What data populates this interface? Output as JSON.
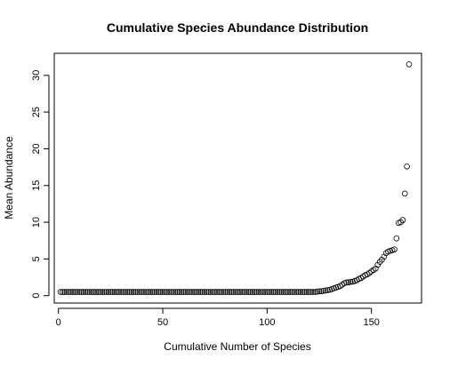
{
  "chart_data": {
    "type": "scatter",
    "title": "Cumulative Species Abundance Distribution",
    "xlabel": "Cumulative Number of Species",
    "ylabel": "Mean Abundance",
    "xlim": [
      -2,
      174
    ],
    "ylim": [
      -1.0,
      33.0
    ],
    "xticks": [
      0,
      50,
      100,
      150
    ],
    "yticks": [
      0,
      5,
      10,
      15,
      20,
      25,
      30
    ],
    "grid": false,
    "legend": "none",
    "marker": "open-circle",
    "series": [
      {
        "flat_start": 1,
        "flat_end": 122,
        "flat_value": 0.5,
        "points": [
          [
            123,
            0.5
          ],
          [
            124,
            0.55
          ],
          [
            125,
            0.6
          ],
          [
            126,
            0.6
          ],
          [
            127,
            0.65
          ],
          [
            128,
            0.7
          ],
          [
            129,
            0.75
          ],
          [
            130,
            0.8
          ],
          [
            131,
            0.9
          ],
          [
            132,
            1.0
          ],
          [
            133,
            1.1
          ],
          [
            134,
            1.2
          ],
          [
            135,
            1.3
          ],
          [
            136,
            1.5
          ],
          [
            137,
            1.7
          ],
          [
            138,
            1.8
          ],
          [
            139,
            1.8
          ],
          [
            140,
            1.9
          ],
          [
            141,
            1.9
          ],
          [
            142,
            2.0
          ],
          [
            143,
            2.1
          ],
          [
            144,
            2.3
          ],
          [
            145,
            2.4
          ],
          [
            146,
            2.6
          ],
          [
            147,
            2.8
          ],
          [
            148,
            2.9
          ],
          [
            149,
            3.1
          ],
          [
            150,
            3.3
          ],
          [
            151,
            3.5
          ],
          [
            152,
            3.7
          ],
          [
            153,
            4.2
          ],
          [
            154,
            4.6
          ],
          [
            155,
            4.9
          ],
          [
            156,
            5.3
          ],
          [
            157,
            5.8
          ],
          [
            158,
            6.0
          ],
          [
            159,
            6.1
          ],
          [
            160,
            6.2
          ],
          [
            161,
            6.3
          ],
          [
            162,
            7.8
          ],
          [
            163,
            9.9
          ],
          [
            164,
            10.0
          ],
          [
            165,
            10.3
          ],
          [
            166,
            13.9
          ],
          [
            167,
            17.6
          ],
          [
            168,
            31.5
          ]
        ]
      }
    ]
  }
}
